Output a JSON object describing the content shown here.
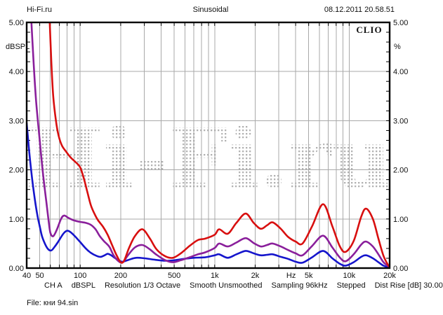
{
  "header": {
    "left": "Hi-Fi.ru",
    "center": "Sinusoidal",
    "right": "08.12.2011 20.58.51"
  },
  "chart": {
    "brand": "CLIO",
    "watermark": "Hi-Fi.ru",
    "y_left_label": "dBSPL",
    "y_right_label": "%",
    "x_unit": "Hz"
  },
  "footer": {
    "tokens": [
      "CH A",
      "dBSPL",
      "Resolution 1/3 Octave",
      "Smooth Unsmoothed",
      "Sampling 96kHz",
      "Stepped",
      "Dist Rise [dB] 30.00"
    ],
    "file": "File: кни 94.sin"
  },
  "chart_data": {
    "type": "line",
    "title": "Sinusoidal",
    "x_scale": "log",
    "x_range": [
      40,
      20000
    ],
    "xlabel": "Hz",
    "ylabel_left": "dBSPL",
    "ylabel_right": "%",
    "y_range": [
      0,
      5
    ],
    "y_major_step": 1,
    "y_minor_step": 0.2,
    "grid": true,
    "legend": "none",
    "x_ticks": [
      {
        "label": "40",
        "f": 40
      },
      {
        "label": "50",
        "f": 50
      },
      {
        "label": "100",
        "f": 100
      },
      {
        "label": "200",
        "f": 200
      },
      {
        "label": "500",
        "f": 500
      },
      {
        "label": "1k",
        "f": 1000
      },
      {
        "label": "2k",
        "f": 2000
      },
      {
        "label": "5k",
        "f": 5000
      },
      {
        "label": "10k",
        "f": 10000
      },
      {
        "label": "20k",
        "f": 20000
      }
    ],
    "x_unit_label": {
      "label": "Hz",
      "f": 3700
    },
    "y_ticks": [
      "0.00",
      "1.00",
      "2.00",
      "3.00",
      "4.00",
      "5.00"
    ],
    "series": [
      {
        "name": "blue-curve",
        "color": "#1515cc",
        "points": [
          [
            40,
            2.95
          ],
          [
            42,
            2.3
          ],
          [
            44,
            1.8
          ],
          [
            46,
            1.4
          ],
          [
            48,
            1.08
          ],
          [
            50,
            0.85
          ],
          [
            52,
            0.65
          ],
          [
            55,
            0.48
          ],
          [
            58,
            0.38
          ],
          [
            61,
            0.36
          ],
          [
            64,
            0.42
          ],
          [
            68,
            0.52
          ],
          [
            72,
            0.63
          ],
          [
            76,
            0.72
          ],
          [
            80,
            0.76
          ],
          [
            85,
            0.73
          ],
          [
            92,
            0.64
          ],
          [
            100,
            0.53
          ],
          [
            110,
            0.4
          ],
          [
            120,
            0.31
          ],
          [
            132,
            0.25
          ],
          [
            142,
            0.23
          ],
          [
            152,
            0.26
          ],
          [
            160,
            0.29
          ],
          [
            170,
            0.26
          ],
          [
            185,
            0.19
          ],
          [
            205,
            0.13
          ],
          [
            230,
            0.17
          ],
          [
            260,
            0.21
          ],
          [
            300,
            0.2
          ],
          [
            360,
            0.17
          ],
          [
            430,
            0.15
          ],
          [
            500,
            0.16
          ],
          [
            600,
            0.19
          ],
          [
            700,
            0.21
          ],
          [
            850,
            0.22
          ],
          [
            1000,
            0.26
          ],
          [
            1080,
            0.28
          ],
          [
            1250,
            0.21
          ],
          [
            1450,
            0.28
          ],
          [
            1700,
            0.35
          ],
          [
            1950,
            0.3
          ],
          [
            2200,
            0.26
          ],
          [
            2450,
            0.27
          ],
          [
            2700,
            0.28
          ],
          [
            3100,
            0.23
          ],
          [
            3500,
            0.19
          ],
          [
            4000,
            0.13
          ],
          [
            4500,
            0.11
          ],
          [
            5300,
            0.22
          ],
          [
            6400,
            0.35
          ],
          [
            7500,
            0.2
          ],
          [
            8500,
            0.09
          ],
          [
            9400,
            0.05
          ],
          [
            10800,
            0.12
          ],
          [
            12300,
            0.23
          ],
          [
            13400,
            0.26
          ],
          [
            15000,
            0.2
          ],
          [
            16500,
            0.12
          ],
          [
            18000,
            0.05
          ],
          [
            19500,
            0.02
          ],
          [
            20000,
            0.01
          ]
        ]
      },
      {
        "name": "purple-curve",
        "color": "#8a1f9b",
        "points": [
          [
            43,
            5.2
          ],
          [
            45,
            4.2
          ],
          [
            47,
            3.4
          ],
          [
            50,
            2.6
          ],
          [
            53,
            1.9
          ],
          [
            56,
            1.35
          ],
          [
            58,
            1.0
          ],
          [
            60,
            0.72
          ],
          [
            63,
            0.65
          ],
          [
            67,
            0.78
          ],
          [
            72,
            1.0
          ],
          [
            76,
            1.07
          ],
          [
            82,
            1.02
          ],
          [
            90,
            0.97
          ],
          [
            100,
            0.94
          ],
          [
            110,
            0.92
          ],
          [
            120,
            0.88
          ],
          [
            130,
            0.79
          ],
          [
            140,
            0.65
          ],
          [
            150,
            0.55
          ],
          [
            158,
            0.49
          ],
          [
            166,
            0.42
          ],
          [
            178,
            0.25
          ],
          [
            195,
            0.13
          ],
          [
            208,
            0.12
          ],
          [
            225,
            0.25
          ],
          [
            255,
            0.42
          ],
          [
            290,
            0.47
          ],
          [
            330,
            0.38
          ],
          [
            370,
            0.27
          ],
          [
            430,
            0.16
          ],
          [
            490,
            0.12
          ],
          [
            560,
            0.16
          ],
          [
            650,
            0.22
          ],
          [
            750,
            0.28
          ],
          [
            850,
            0.32
          ],
          [
            1000,
            0.41
          ],
          [
            1080,
            0.5
          ],
          [
            1250,
            0.44
          ],
          [
            1450,
            0.52
          ],
          [
            1700,
            0.61
          ],
          [
            1950,
            0.51
          ],
          [
            2200,
            0.44
          ],
          [
            2450,
            0.47
          ],
          [
            2700,
            0.5
          ],
          [
            3100,
            0.44
          ],
          [
            3500,
            0.37
          ],
          [
            4000,
            0.3
          ],
          [
            4500,
            0.26
          ],
          [
            5300,
            0.45
          ],
          [
            6400,
            0.66
          ],
          [
            7500,
            0.42
          ],
          [
            8500,
            0.22
          ],
          [
            9400,
            0.14
          ],
          [
            10800,
            0.28
          ],
          [
            12300,
            0.48
          ],
          [
            13400,
            0.54
          ],
          [
            15000,
            0.44
          ],
          [
            16500,
            0.28
          ],
          [
            18000,
            0.12
          ],
          [
            19500,
            0.04
          ],
          [
            20000,
            0.02
          ]
        ]
      },
      {
        "name": "red-curve",
        "color": "#d80f0f",
        "points": [
          [
            59,
            5.2
          ],
          [
            61,
            4.2
          ],
          [
            63,
            3.5
          ],
          [
            66,
            3.0
          ],
          [
            69,
            2.7
          ],
          [
            73,
            2.5
          ],
          [
            78,
            2.38
          ],
          [
            85,
            2.25
          ],
          [
            93,
            2.15
          ],
          [
            100,
            2.05
          ],
          [
            107,
            1.8
          ],
          [
            113,
            1.55
          ],
          [
            120,
            1.28
          ],
          [
            128,
            1.1
          ],
          [
            136,
            0.97
          ],
          [
            148,
            0.84
          ],
          [
            160,
            0.68
          ],
          [
            172,
            0.48
          ],
          [
            185,
            0.28
          ],
          [
            200,
            0.12
          ],
          [
            212,
            0.15
          ],
          [
            230,
            0.4
          ],
          [
            255,
            0.65
          ],
          [
            290,
            0.79
          ],
          [
            330,
            0.6
          ],
          [
            370,
            0.38
          ],
          [
            430,
            0.24
          ],
          [
            490,
            0.21
          ],
          [
            560,
            0.3
          ],
          [
            650,
            0.45
          ],
          [
            750,
            0.57
          ],
          [
            850,
            0.6
          ],
          [
            1000,
            0.68
          ],
          [
            1080,
            0.79
          ],
          [
            1250,
            0.7
          ],
          [
            1450,
            0.92
          ],
          [
            1700,
            1.11
          ],
          [
            1950,
            0.92
          ],
          [
            2200,
            0.8
          ],
          [
            2450,
            0.87
          ],
          [
            2700,
            0.93
          ],
          [
            3100,
            0.8
          ],
          [
            3500,
            0.64
          ],
          [
            4000,
            0.54
          ],
          [
            4500,
            0.5
          ],
          [
            5300,
            0.85
          ],
          [
            6400,
            1.3
          ],
          [
            7500,
            0.85
          ],
          [
            8500,
            0.45
          ],
          [
            9400,
            0.33
          ],
          [
            10800,
            0.55
          ],
          [
            12300,
            1.05
          ],
          [
            13400,
            1.21
          ],
          [
            15000,
            1.0
          ],
          [
            16500,
            0.6
          ],
          [
            18000,
            0.25
          ],
          [
            19500,
            0.06
          ],
          [
            20000,
            0.02
          ]
        ]
      }
    ]
  }
}
